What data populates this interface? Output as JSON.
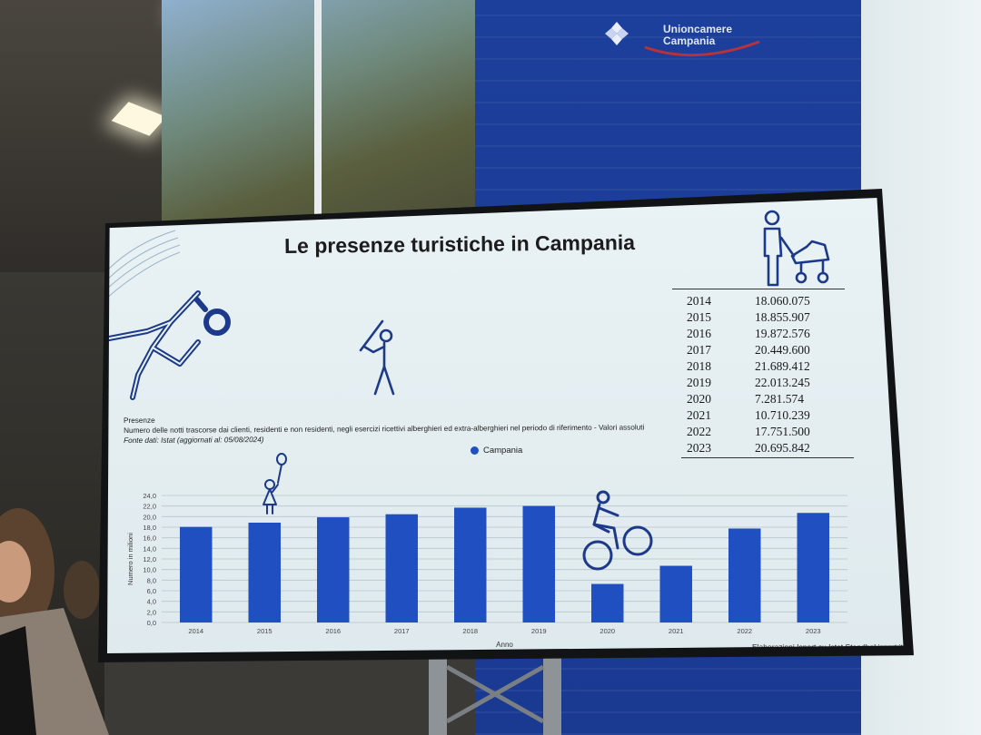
{
  "slide": {
    "title": "Le presenze turistiche in Campania",
    "subtitle": "Presenze",
    "description": "Numero delle notti trascorse dai clienti, residenti e non residenti, negli esercizi ricettivi alberghieri ed extra-alberghieri nel periodo di riferimento - Valori assoluti",
    "source": "Fonte dati: Istat (aggiornati al: 05/08/2024)",
    "credit": "Elaborazioni Isnart su Istat Stendhal.isnart.it"
  },
  "brand": {
    "line1": "Unioncamere",
    "line2": "Campania"
  },
  "table": [
    {
      "year": "2014",
      "value": "18.060.075"
    },
    {
      "year": "2015",
      "value": "18.855.907"
    },
    {
      "year": "2016",
      "value": "19.872.576"
    },
    {
      "year": "2017",
      "value": "20.449.600"
    },
    {
      "year": "2018",
      "value": "21.689.412"
    },
    {
      "year": "2019",
      "value": "22.013.245"
    },
    {
      "year": "2020",
      "value": "7.281.574"
    },
    {
      "year": "2021",
      "value": "10.710.239"
    },
    {
      "year": "2022",
      "value": "17.751.500"
    },
    {
      "year": "2023",
      "value": "20.695.842"
    }
  ],
  "icons": {
    "runner": "running-person-icon",
    "batter": "baseball-player-icon",
    "stroller": "person-with-stroller-icon",
    "child": "child-with-balloon-icon",
    "cyclist": "cyclist-icon"
  },
  "colors": {
    "bar": "#1f4fc1",
    "icon": "#1d3a8a"
  },
  "chart_data": {
    "type": "bar",
    "title": "",
    "xlabel": "Anno",
    "ylabel": "Numero in milioni",
    "legend": "Campania",
    "legend_position": "top-center",
    "grid": true,
    "ylim": [
      0,
      24
    ],
    "yticks": [
      "0,0",
      "2,0",
      "4,0",
      "6,0",
      "8,0",
      "10,0",
      "12,0",
      "14,0",
      "16,0",
      "18,0",
      "20,0",
      "22,0",
      "24,0"
    ],
    "categories": [
      "2014",
      "2015",
      "2016",
      "2017",
      "2018",
      "2019",
      "2020",
      "2021",
      "2022",
      "2023"
    ],
    "series": [
      {
        "name": "Campania",
        "values": [
          18.06,
          18.86,
          19.87,
          20.45,
          21.69,
          22.01,
          7.28,
          10.71,
          17.75,
          20.7
        ]
      }
    ]
  }
}
